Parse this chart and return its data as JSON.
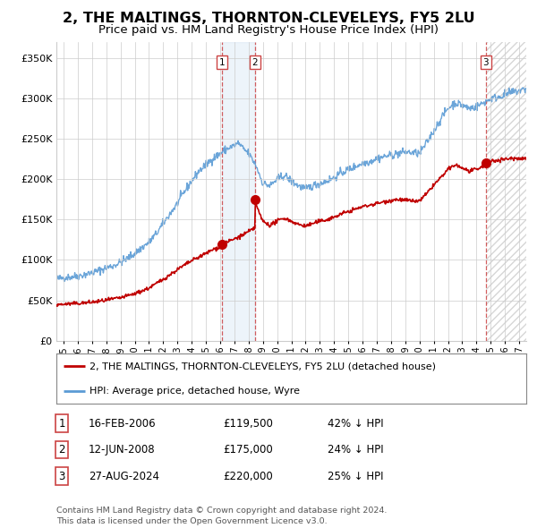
{
  "title": "2, THE MALTINGS, THORNTON-CLEVELEYS, FY5 2LU",
  "subtitle": "Price paid vs. HM Land Registry's House Price Index (HPI)",
  "title_fontsize": 11.5,
  "subtitle_fontsize": 9.5,
  "ylim": [
    0,
    370000
  ],
  "yticks": [
    0,
    50000,
    100000,
    150000,
    200000,
    250000,
    300000,
    350000
  ],
  "ytick_labels": [
    "£0",
    "£50K",
    "£100K",
    "£150K",
    "£200K",
    "£250K",
    "£300K",
    "£350K"
  ],
  "xlim_start": 1994.5,
  "xlim_end": 2027.5,
  "xticks": [
    1995,
    1996,
    1997,
    1998,
    1999,
    2000,
    2001,
    2002,
    2003,
    2004,
    2005,
    2006,
    2007,
    2008,
    2009,
    2010,
    2011,
    2012,
    2013,
    2014,
    2015,
    2016,
    2017,
    2018,
    2019,
    2020,
    2021,
    2022,
    2023,
    2024,
    2025,
    2026,
    2027
  ],
  "hpi_color": "#5b9bd5",
  "price_color": "#c00000",
  "sale1_x": 2006.12,
  "sale1_y": 119500,
  "sale2_x": 2008.45,
  "sale2_y": 175000,
  "sale3_x": 2024.65,
  "sale3_y": 220000,
  "shade1_x1": 2006.12,
  "shade1_x2": 2008.45,
  "shade2_x1": 2024.65,
  "shade2_x2": 2027.5,
  "legend_label_red": "2, THE MALTINGS, THORNTON-CLEVELEYS, FY5 2LU (detached house)",
  "legend_label_blue": "HPI: Average price, detached house, Wyre",
  "table_rows": [
    {
      "num": "1",
      "date": "16-FEB-2006",
      "price": "£119,500",
      "hpi": "42% ↓ HPI"
    },
    {
      "num": "2",
      "date": "12-JUN-2008",
      "price": "£175,000",
      "hpi": "24% ↓ HPI"
    },
    {
      "num": "3",
      "date": "27-AUG-2024",
      "price": "£220,000",
      "hpi": "25% ↓ HPI"
    }
  ],
  "footer": "Contains HM Land Registry data © Crown copyright and database right 2024.\nThis data is licensed under the Open Government Licence v3.0.",
  "background_color": "#ffffff",
  "grid_color": "#cccccc"
}
